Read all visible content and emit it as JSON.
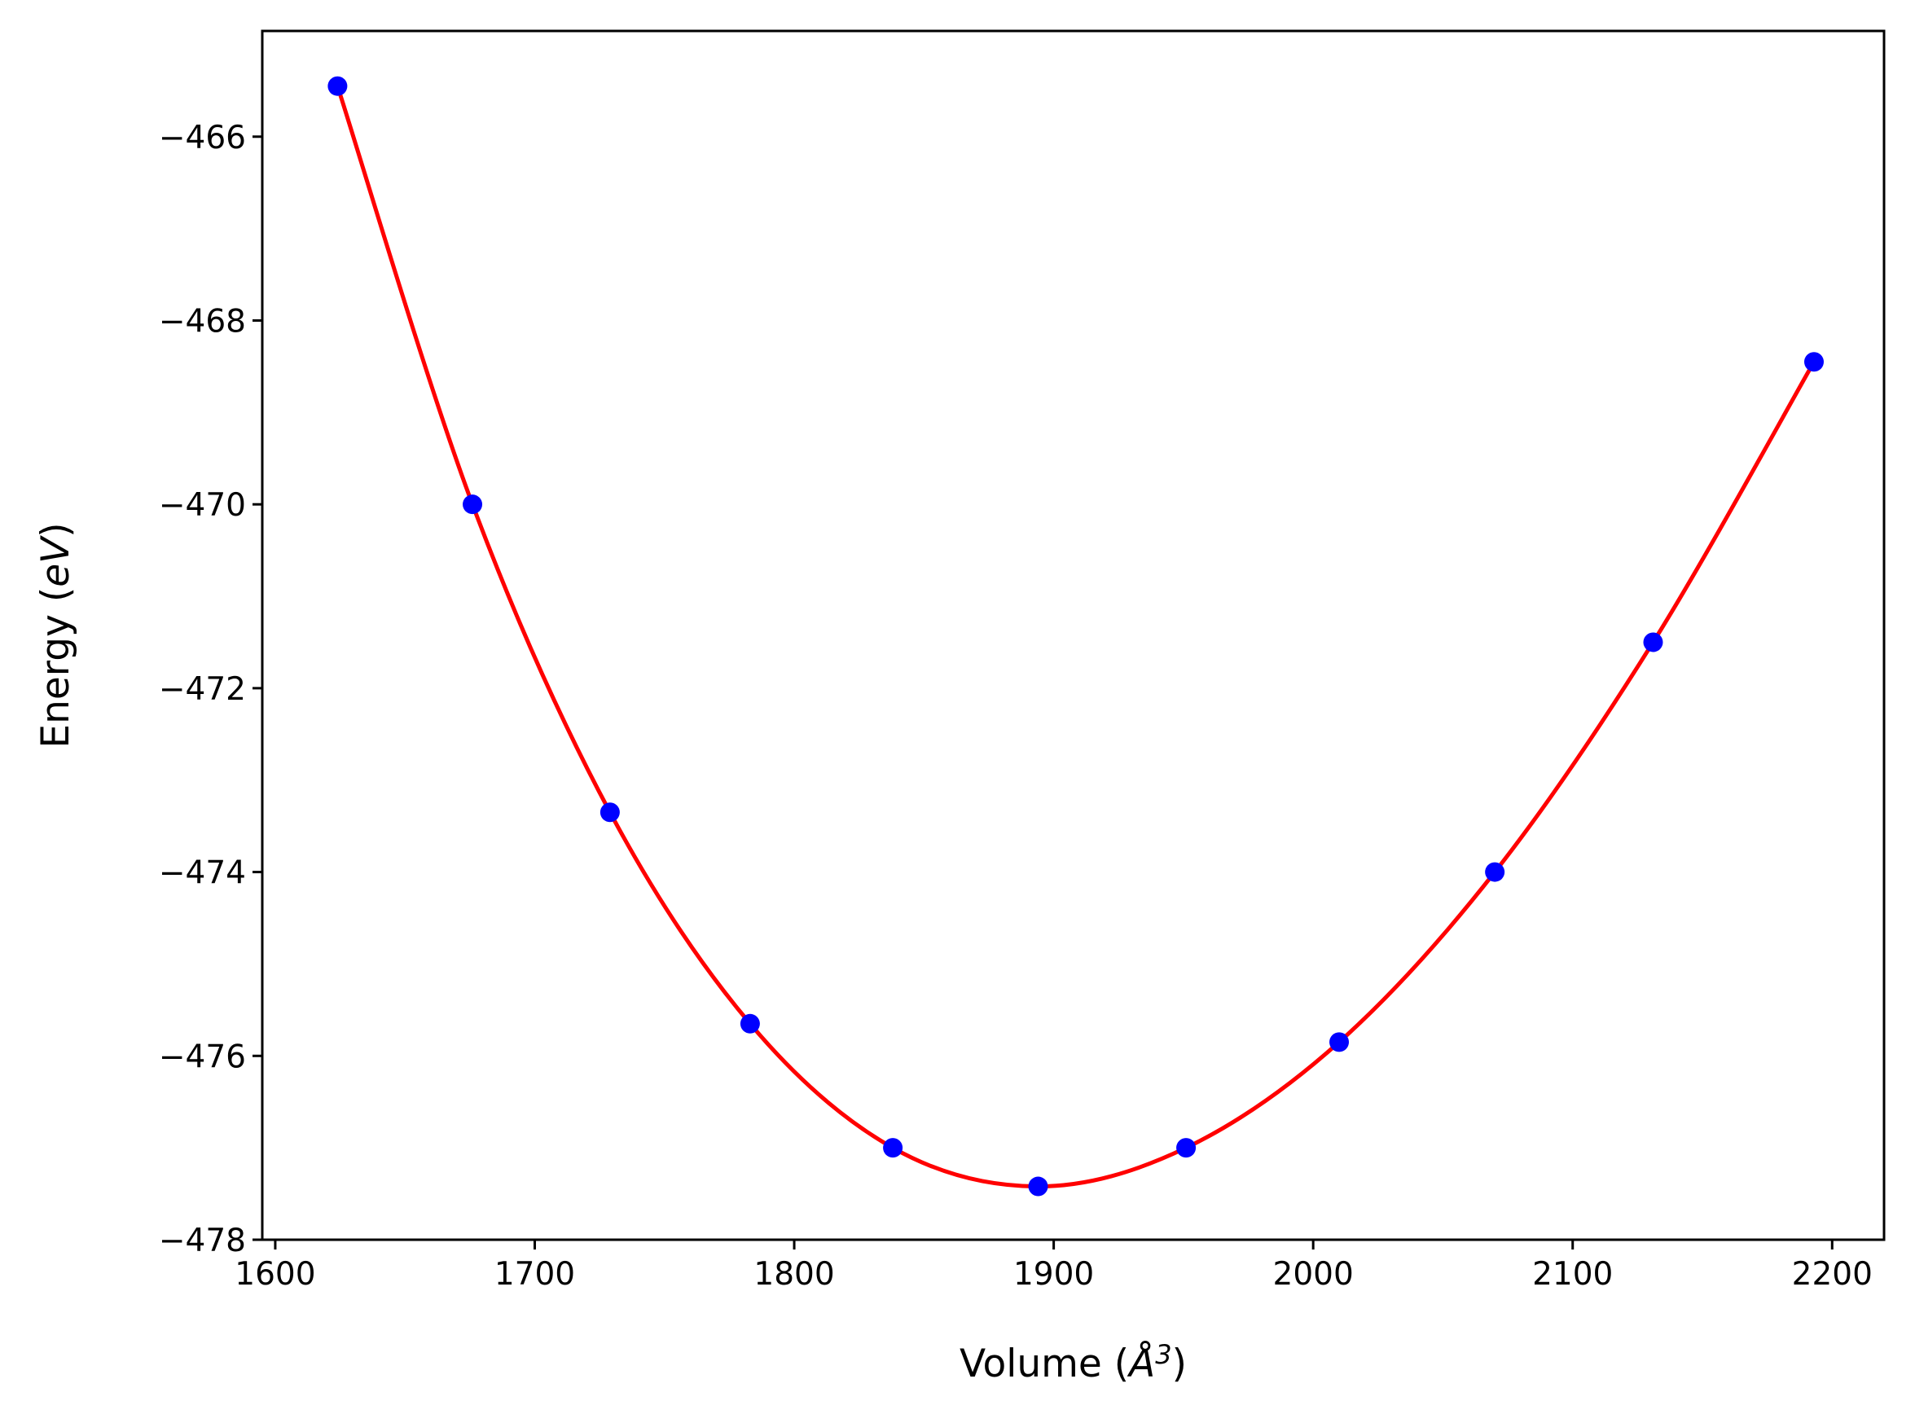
{
  "chart_data": {
    "type": "line",
    "title": "",
    "xlabel": {
      "prefix": "Volume (",
      "unit": "Å",
      "sup": "3",
      "suffix": ")"
    },
    "ylabel": {
      "prefix": "Energy (",
      "unit": "eV",
      "suffix": ")"
    },
    "xlim": [
      1595,
      2220
    ],
    "ylim": [
      -478.0,
      -464.85
    ],
    "xticks": [
      1600,
      1700,
      1800,
      1900,
      2000,
      2100,
      2200
    ],
    "xtick_labels": [
      "1600",
      "1700",
      "1800",
      "1900",
      "2000",
      "2100",
      "2200"
    ],
    "yticks": [
      -466,
      -468,
      -470,
      -472,
      -474,
      -476,
      -478
    ],
    "ytick_labels": [
      "−466",
      "−468",
      "−470",
      "−472",
      "−474",
      "−476",
      "−478"
    ],
    "grid": false,
    "series": [
      {
        "kind": "scatter",
        "color": "#0000ff",
        "x": [
          1624,
          1676,
          1729,
          1783,
          1838,
          1894,
          1951,
          2010,
          2070,
          2131,
          2193
        ],
        "y": [
          -465.45,
          -470.0,
          -473.35,
          -475.65,
          -477.0,
          -477.42,
          -477.0,
          -475.85,
          -474.0,
          -471.5,
          -468.45
        ]
      },
      {
        "kind": "fit-line",
        "color": "#ff0000",
        "x": [
          1624,
          1676,
          1729,
          1783,
          1838,
          1894,
          1951,
          2010,
          2070,
          2131,
          2193
        ],
        "y": [
          -465.45,
          -470.0,
          -473.35,
          -475.65,
          -477.0,
          -477.42,
          -477.0,
          -475.85,
          -474.0,
          -471.5,
          -468.45
        ]
      }
    ]
  }
}
